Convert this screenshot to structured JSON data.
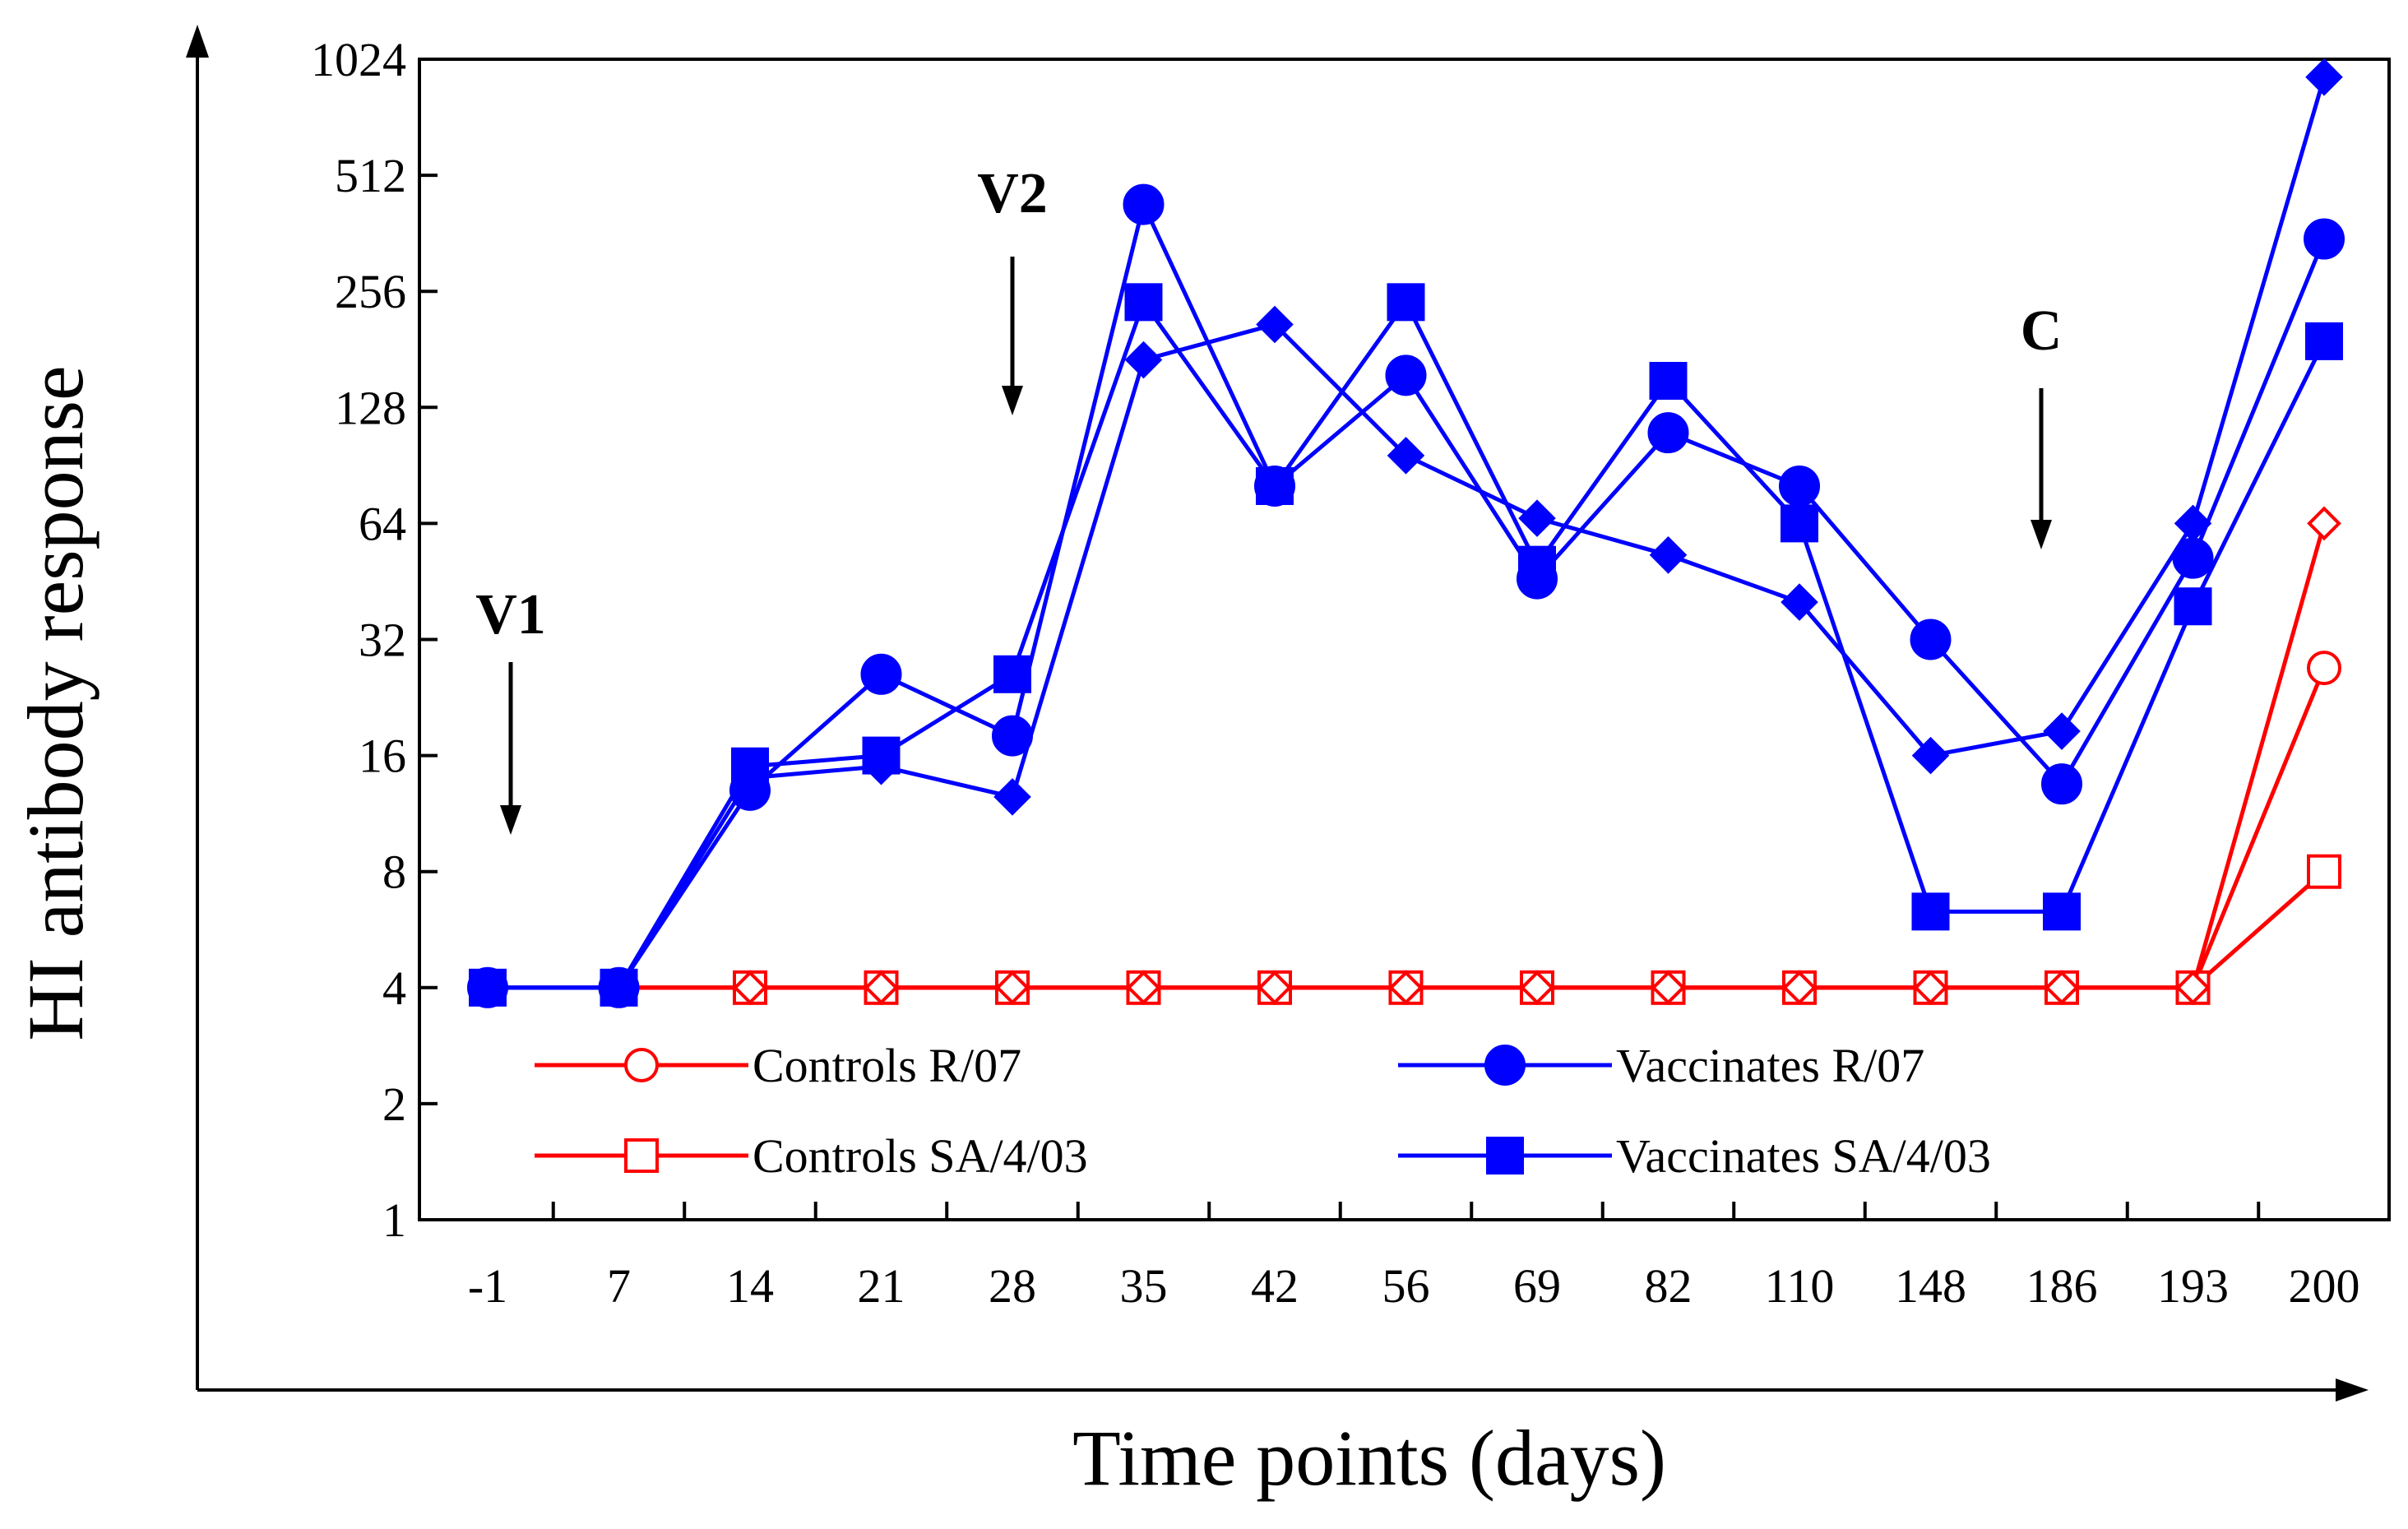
{
  "chart_data": {
    "type": "line",
    "title": "",
    "xlabel": "Time points (days)",
    "ylabel": "HI antibody response",
    "categories": [
      "-1",
      "7",
      "14",
      "21",
      "28",
      "35",
      "42",
      "56",
      "69",
      "82",
      "110",
      "148",
      "186",
      "193",
      "200"
    ],
    "y_scale": "log2",
    "ylim": [
      1,
      1024
    ],
    "yticks": [
      1,
      2,
      4,
      8,
      16,
      32,
      64,
      128,
      256,
      512,
      1024
    ],
    "grid": false,
    "legend_position": "bottom inside plot, two columns",
    "series": [
      {
        "name": "Controls R/07",
        "color": "#ff0000",
        "marker": "open-circle",
        "values": [
          null,
          4,
          4,
          4,
          4,
          4,
          4,
          4,
          4,
          4,
          4,
          4,
          4,
          4,
          27
        ]
      },
      {
        "name": "Controls SA/4/03",
        "color": "#ff0000",
        "marker": "open-square",
        "values": [
          null,
          4,
          4,
          4,
          4,
          4,
          4,
          4,
          4,
          4,
          4,
          4,
          4,
          4,
          8
        ]
      },
      {
        "name": "",
        "color": "#ff0000",
        "marker": "open-diamond",
        "values": [
          null,
          4,
          4,
          4,
          4,
          4,
          4,
          4,
          4,
          4,
          4,
          4,
          4,
          4,
          64
        ]
      },
      {
        "name": "Vaccinates R/07",
        "color": "#0000ff",
        "marker": "filled-circle",
        "values": [
          4,
          4,
          13,
          26,
          18,
          430,
          80,
          155,
          46,
          110,
          80,
          32,
          13.5,
          52,
          350
        ]
      },
      {
        "name": "Vaccinates SA/4/03",
        "color": "#0000ff",
        "marker": "filled-square",
        "values": [
          4,
          4,
          15,
          16,
          26,
          240,
          80,
          240,
          50,
          150,
          64,
          6.3,
          6.3,
          39,
          190
        ]
      },
      {
        "name": "",
        "color": "#0000ff",
        "marker": "filled-diamond",
        "values": [
          4,
          4,
          14,
          15,
          12.5,
          170,
          210,
          96,
          66,
          53,
          40,
          16,
          18.5,
          64,
          920
        ]
      }
    ],
    "annotations": [
      {
        "label": "V1",
        "category": "-1"
      },
      {
        "label": "V2",
        "category": "28"
      },
      {
        "label": "C",
        "category": "186"
      }
    ],
    "legend": [
      {
        "label": "Controls R/07",
        "series": 0
      },
      {
        "label": "Vaccinates R/07",
        "series": 3
      },
      {
        "label": "Controls SA/4/03",
        "series": 1
      },
      {
        "label": "Vaccinates SA/4/03",
        "series": 4
      }
    ]
  }
}
